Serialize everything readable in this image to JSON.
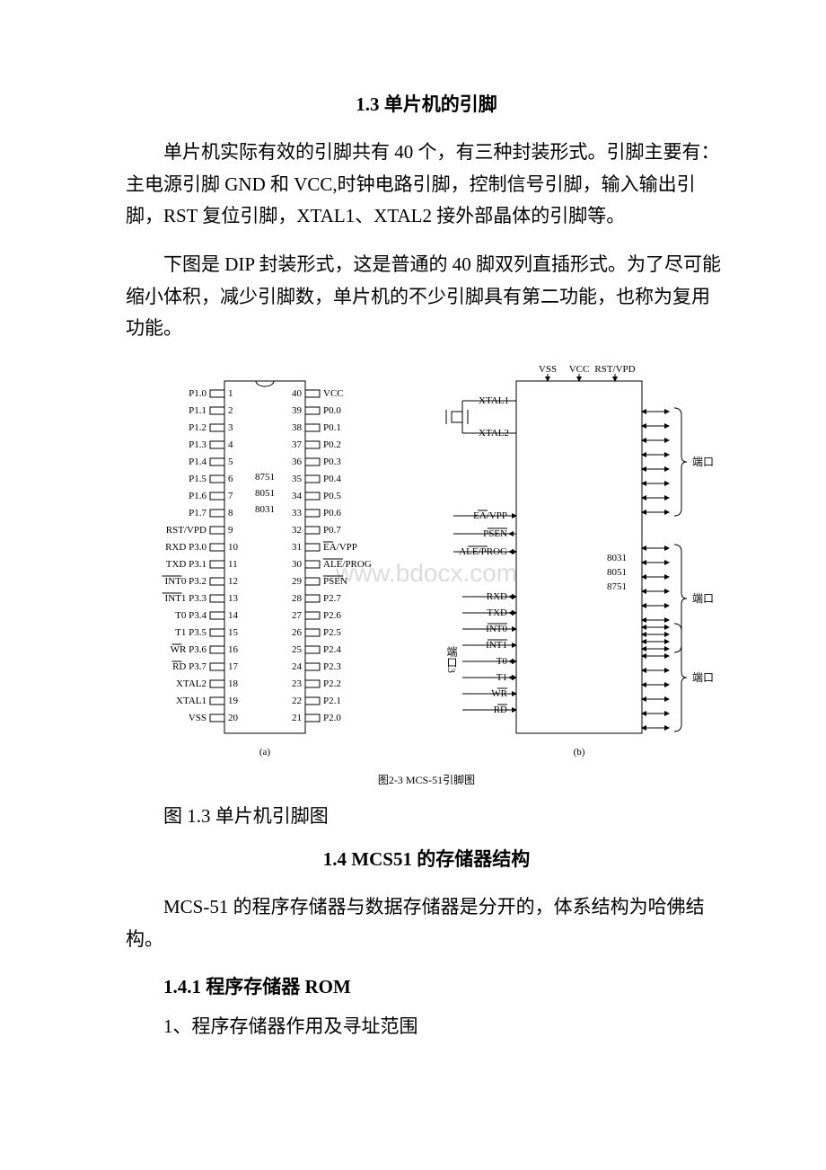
{
  "section13": {
    "title": "1.3 单片机的引脚",
    "para1": "单片机实际有效的引脚共有 40 个，有三种封装形式。引脚主要有：主电源引脚 GND 和 VCC,时钟电路引脚，控制信号引脚，输入输出引脚，RST 复位引脚，XTAL1、XTAL2 接外部晶体的引脚等。",
    "para2": "下图是 DIP 封装形式，这是普通的 40 脚双列直插形式。为了尽可能缩小体积，减少引脚数，单片机的不少引脚具有第二功能，也称为复用功能。",
    "figure": {
      "inner_caption": "图2-3  MCS-51引脚图",
      "outer_caption": "图 1.3 单片机引脚图",
      "watermark": "www.bdocx.com",
      "panel_a": {
        "label": "(a)",
        "chip_labels": [
          "8751",
          "8051",
          "8031"
        ],
        "left_pins": [
          {
            "n": "1",
            "lbl": "P1.0"
          },
          {
            "n": "2",
            "lbl": "P1.1"
          },
          {
            "n": "3",
            "lbl": "P1.2"
          },
          {
            "n": "4",
            "lbl": "P1.3"
          },
          {
            "n": "5",
            "lbl": "P1.4"
          },
          {
            "n": "6",
            "lbl": "P1.5"
          },
          {
            "n": "7",
            "lbl": "P1.6"
          },
          {
            "n": "8",
            "lbl": "P1.7"
          },
          {
            "n": "9",
            "lbl": "RST/VPD"
          },
          {
            "n": "10",
            "lbl": "RXD P3.0"
          },
          {
            "n": "11",
            "lbl": "TXD P3.1"
          },
          {
            "n": "12",
            "lbl": "INT0 P3.2",
            "bar": "INT0"
          },
          {
            "n": "13",
            "lbl": "INT1 P3.3",
            "bar": "INT1"
          },
          {
            "n": "14",
            "lbl": "T0 P3.4"
          },
          {
            "n": "15",
            "lbl": "T1 P3.5"
          },
          {
            "n": "16",
            "lbl": "WR P3.6",
            "bar": "WR"
          },
          {
            "n": "17",
            "lbl": "RD P3.7",
            "bar": "RD"
          },
          {
            "n": "18",
            "lbl": "XTAL2"
          },
          {
            "n": "19",
            "lbl": "XTAL1"
          },
          {
            "n": "20",
            "lbl": "VSS"
          }
        ],
        "right_pins": [
          {
            "n": "40",
            "lbl": "VCC"
          },
          {
            "n": "39",
            "lbl": "P0.0"
          },
          {
            "n": "38",
            "lbl": "P0.1"
          },
          {
            "n": "37",
            "lbl": "P0.2"
          },
          {
            "n": "36",
            "lbl": "P0.3"
          },
          {
            "n": "35",
            "lbl": "P0.4"
          },
          {
            "n": "34",
            "lbl": "P0.5"
          },
          {
            "n": "33",
            "lbl": "P0.6"
          },
          {
            "n": "32",
            "lbl": "P0.7"
          },
          {
            "n": "31",
            "lbl": "EA/VPP",
            "bar": "EA"
          },
          {
            "n": "30",
            "lbl": "ALE/PROG",
            "bar": "PROG"
          },
          {
            "n": "29",
            "lbl": "PSEN",
            "bar": "PSEN"
          },
          {
            "n": "28",
            "lbl": "P2.7"
          },
          {
            "n": "27",
            "lbl": "P2.6"
          },
          {
            "n": "26",
            "lbl": "P2.5"
          },
          {
            "n": "25",
            "lbl": "P2.4"
          },
          {
            "n": "24",
            "lbl": "P2.3"
          },
          {
            "n": "23",
            "lbl": "P2.2"
          },
          {
            "n": "22",
            "lbl": "P2.1"
          },
          {
            "n": "21",
            "lbl": "P2.0"
          }
        ]
      },
      "panel_b": {
        "label": "(b)",
        "top_labels": [
          "VSS",
          "VCC",
          "RST/VPD"
        ],
        "xtal": [
          "XTAL1",
          "XTAL2"
        ],
        "left_ctrl": [
          {
            "lbl": "EA/VPP",
            "bar": "EA"
          },
          {
            "lbl": "PSEN",
            "bar": "PSEN"
          },
          {
            "lbl": "ALE/PROG",
            "bar": "PROG"
          }
        ],
        "p3": [
          "RXD",
          "TXD",
          "INT0",
          "INT1",
          "T0",
          "T1",
          "WR",
          "RD"
        ],
        "p3_bars": [
          "INT0",
          "INT1",
          "WR",
          "RD"
        ],
        "p3_label": "端口3",
        "right_ports": [
          "端口0",
          "端口1",
          "端口2"
        ],
        "chip_labels": [
          "8031",
          "8051",
          "8751"
        ]
      },
      "colors": {
        "line": "#000000",
        "bg": "#ffffff",
        "watermark": "#dcdcdc"
      }
    }
  },
  "section14": {
    "title": "1.4 MCS51 的存储器结构",
    "para1": "MCS-51 的程序存储器与数据存储器是分开的，体系结构为哈佛结构。",
    "sub_title": "1.4.1 程序存储器 ROM",
    "item1": "1、程序存储器作用及寻址范围"
  }
}
